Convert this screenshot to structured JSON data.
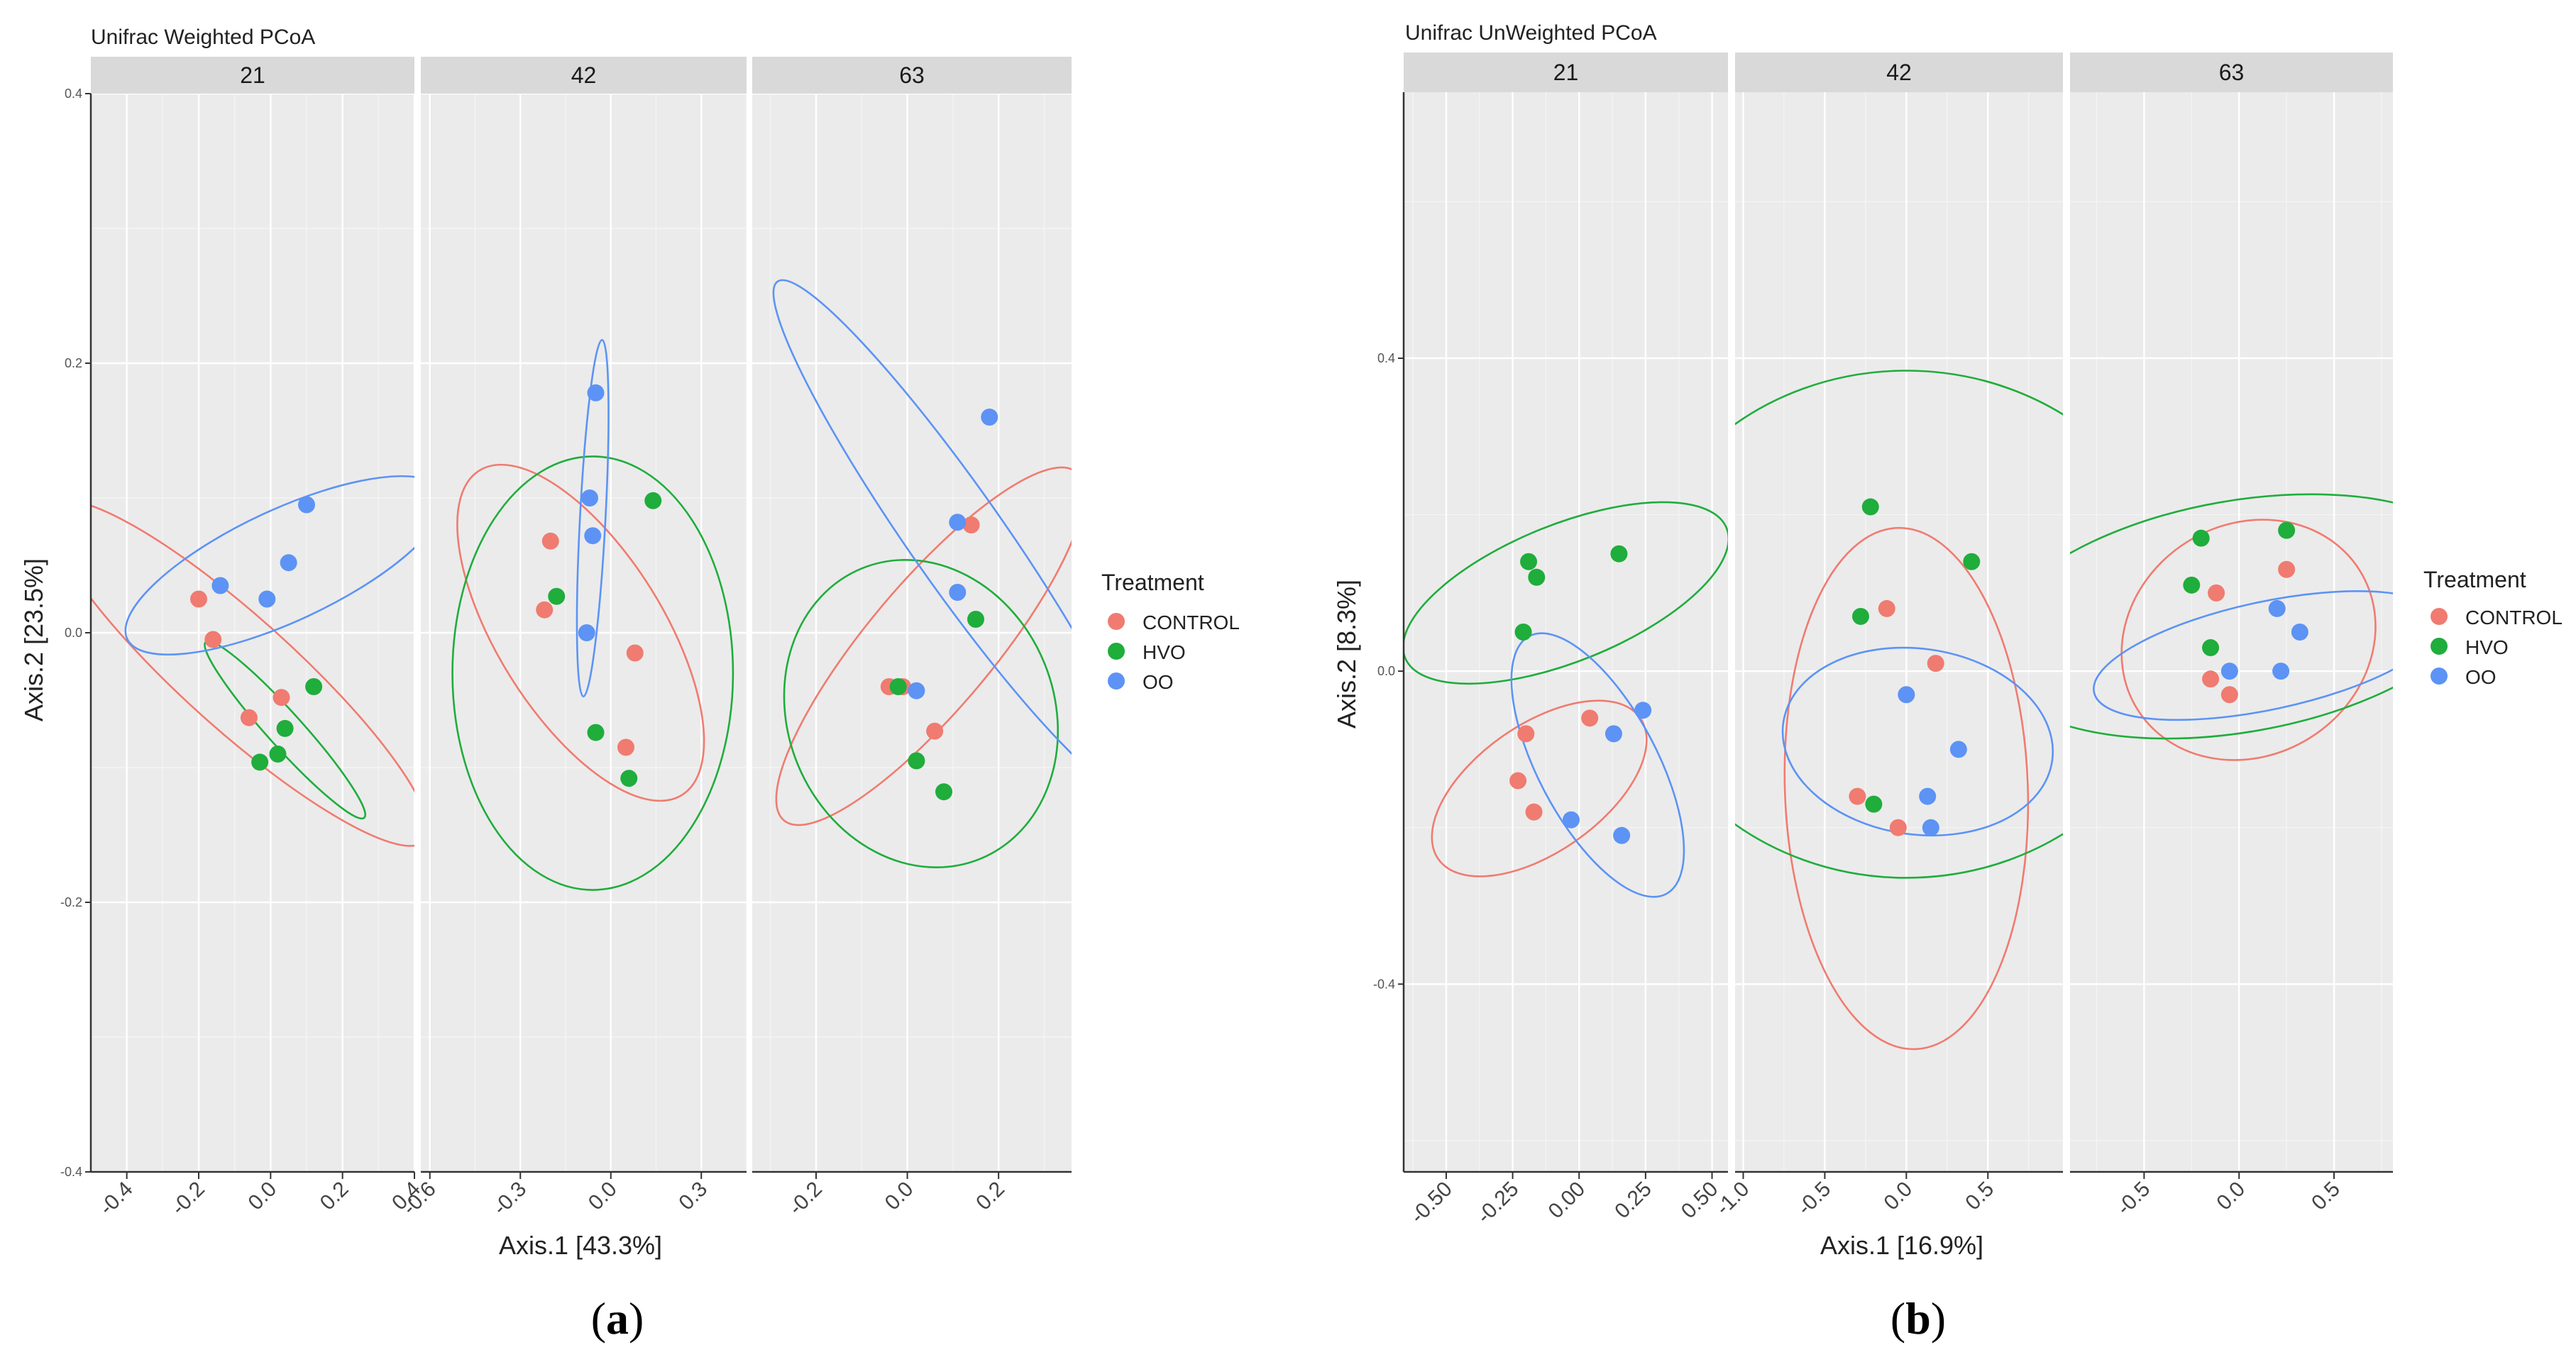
{
  "colors": {
    "CONTROL": "#f07b70",
    "HVO": "#1fad3c",
    "OO": "#5c93f5"
  },
  "chart_data": [
    {
      "type": "scatter",
      "letter": "a",
      "title": "Unifrac Weighted PCoA",
      "xlabel": "Axis.1   [43.3%]",
      "ylabel": "Axis.2   [23.5%]",
      "ylim": [
        -0.4,
        0.4
      ],
      "yticks": [
        -0.4,
        -0.2,
        0.0,
        0.2,
        0.4
      ],
      "ytick_labels": [
        "-0.4",
        "-0.2",
        "0.0",
        "0.2",
        "0.4"
      ],
      "legend": {
        "title": "Treatment",
        "entries": [
          "CONTROL",
          "HVO",
          "OO"
        ],
        "placement": "right"
      },
      "facets": [
        {
          "label": "21",
          "xlim": [
            -0.5,
            0.4
          ],
          "xticks": [
            -0.4,
            -0.2,
            0.0,
            0.2,
            0.4
          ],
          "xtick_labels": [
            "-0.4",
            "-0.2",
            "0.0",
            "0.2",
            "0.4"
          ],
          "series": [
            {
              "name": "CONTROL",
              "points": [
                [
                  -0.2,
                  0.025
                ],
                [
                  -0.16,
                  -0.005
                ],
                [
                  -0.06,
                  -0.063
                ],
                [
                  0.03,
                  -0.048
                ]
              ],
              "ellipse": {
                "cx": -0.09,
                "cy": -0.03,
                "rx": 0.36,
                "ry": 0.08,
                "angle_deg": -42
              }
            },
            {
              "name": "HVO",
              "points": [
                [
                  -0.03,
                  -0.096
                ],
                [
                  0.02,
                  -0.09
                ],
                [
                  0.04,
                  -0.071
                ],
                [
                  0.12,
                  -0.04
                ]
              ],
              "ellipse": {
                "cx": 0.04,
                "cy": -0.072,
                "rx": 0.17,
                "ry": 0.025,
                "angle_deg": -48
              }
            },
            {
              "name": "OO",
              "points": [
                [
                  -0.14,
                  0.035
                ],
                [
                  -0.01,
                  0.025
                ],
                [
                  0.05,
                  0.052
                ],
                [
                  0.1,
                  0.095
                ]
              ],
              "ellipse": {
                "cx": 0.04,
                "cy": 0.05,
                "rx": 0.25,
                "ry": 0.08,
                "angle_deg": 25
              }
            }
          ]
        },
        {
          "label": "42",
          "xlim": [
            -0.63,
            0.45
          ],
          "xticks": [
            -0.6,
            -0.3,
            0.0,
            0.3
          ],
          "xtick_labels": [
            "-0.6",
            "-0.3",
            "0.0",
            "0.3"
          ],
          "series": [
            {
              "name": "CONTROL",
              "points": [
                [
                  -0.22,
                  0.017
                ],
                [
                  -0.2,
                  0.068
                ],
                [
                  0.05,
                  -0.085
                ],
                [
                  0.08,
                  -0.015
                ]
              ],
              "ellipse": {
                "cx": -0.1,
                "cy": 0.0,
                "rx": 0.3,
                "ry": 0.13,
                "angle_deg": -58
              }
            },
            {
              "name": "HVO",
              "points": [
                [
                  -0.18,
                  0.027
                ],
                [
                  -0.05,
                  -0.074
                ],
                [
                  0.06,
                  -0.108
                ],
                [
                  0.14,
                  0.098
                ]
              ],
              "ellipse": {
                "cx": -0.06,
                "cy": -0.03,
                "rx": 0.22,
                "ry": 0.34,
                "angle_deg": 0
              }
            },
            {
              "name": "OO",
              "points": [
                [
                  -0.07,
                  0.1
                ],
                [
                  -0.06,
                  0.072
                ],
                [
                  -0.05,
                  0.178
                ],
                [
                  -0.08,
                  0.0
                ]
              ],
              "ellipse": {
                "cx": -0.06,
                "cy": 0.085,
                "rx": 0.02,
                "ry": 0.28,
                "angle_deg": -3
              }
            }
          ]
        },
        {
          "label": "63",
          "xlim": [
            -0.34,
            0.36
          ],
          "xticks": [
            -0.2,
            0.0,
            0.2
          ],
          "xtick_labels": [
            "-0.2",
            "0.0",
            "0.2"
          ],
          "series": [
            {
              "name": "CONTROL",
              "points": [
                [
                  -0.04,
                  -0.04
                ],
                [
                  -0.01,
                  -0.04
                ],
                [
                  0.06,
                  -0.073
                ],
                [
                  0.14,
                  0.08
                ]
              ],
              "ellipse": {
                "cx": 0.05,
                "cy": -0.01,
                "rx": 0.29,
                "ry": 0.08,
                "angle_deg": 50
              }
            },
            {
              "name": "HVO",
              "points": [
                [
                  -0.02,
                  -0.04
                ],
                [
                  0.02,
                  -0.095
                ],
                [
                  0.08,
                  -0.118
                ],
                [
                  0.15,
                  0.01
                ]
              ],
              "ellipse": {
                "cx": 0.03,
                "cy": -0.06,
                "rx": 0.17,
                "ry": 0.2,
                "angle_deg": 22
              }
            },
            {
              "name": "OO",
              "points": [
                [
                  0.02,
                  -0.043
                ],
                [
                  0.11,
                  0.082
                ],
                [
                  0.11,
                  0.03
                ],
                [
                  0.18,
                  0.16
                ]
              ],
              "ellipse": {
                "cx": 0.11,
                "cy": 0.07,
                "rx": 0.06,
                "ry": 0.4,
                "angle_deg": 35
              }
            }
          ]
        }
      ]
    },
    {
      "type": "scatter",
      "letter": "b",
      "title": "Unifrac UnWeighted PCoA",
      "xlabel": "Axis.1   [16.9%]",
      "ylabel": "Axis.2   [8.3%]",
      "ylim": [
        -0.64,
        0.74
      ],
      "yticks": [
        -0.4,
        0.0,
        0.4
      ],
      "ytick_labels": [
        "-0.4",
        "0.0",
        "0.4"
      ],
      "legend": {
        "title": "Treatment",
        "entries": [
          "CONTROL",
          "HVO",
          "OO"
        ],
        "placement": "right"
      },
      "facets": [
        {
          "label": "21",
          "xlim": [
            -0.66,
            0.56
          ],
          "xticks": [
            -0.5,
            -0.25,
            0.0,
            0.25,
            0.5
          ],
          "xtick_labels": [
            "-0.50",
            "-0.25",
            "0.00",
            "0.25",
            "0.50"
          ],
          "series": [
            {
              "name": "CONTROL",
              "points": [
                [
                  -0.2,
                  -0.08
                ],
                [
                  -0.23,
                  -0.14
                ],
                [
                  -0.17,
                  -0.18
                ],
                [
                  0.04,
                  -0.06
                ]
              ],
              "ellipse": {
                "cx": -0.15,
                "cy": -0.15,
                "rx": 0.27,
                "ry": 0.14,
                "angle_deg": 35
              }
            },
            {
              "name": "HVO",
              "points": [
                [
                  -0.21,
                  0.05
                ],
                [
                  -0.19,
                  0.14
                ],
                [
                  -0.16,
                  0.12
                ],
                [
                  0.15,
                  0.15
                ]
              ],
              "ellipse": {
                "cx": -0.05,
                "cy": 0.1,
                "rx": 0.38,
                "ry": 0.15,
                "angle_deg": 22
              }
            },
            {
              "name": "OO",
              "points": [
                [
                  -0.03,
                  -0.19
                ],
                [
                  0.13,
                  -0.08
                ],
                [
                  0.16,
                  -0.21
                ],
                [
                  0.24,
                  -0.05
                ]
              ],
              "ellipse": {
                "cx": 0.07,
                "cy": -0.12,
                "rx": 0.32,
                "ry": 0.13,
                "angle_deg": -62
              }
            }
          ]
        },
        {
          "label": "42",
          "xlim": [
            -1.05,
            0.96
          ],
          "xticks": [
            -1.0,
            -0.5,
            0.0,
            0.5
          ],
          "xtick_labels": [
            "-1.0",
            "-0.5",
            "0.0",
            "0.5"
          ],
          "series": [
            {
              "name": "CONTROL",
              "points": [
                [
                  -0.3,
                  -0.16
                ],
                [
                  -0.12,
                  0.08
                ],
                [
                  -0.05,
                  -0.2
                ],
                [
                  0.18,
                  0.01
                ]
              ],
              "ellipse": {
                "cx": 0.0,
                "cy": -0.15,
                "rx": 0.34,
                "ry": 0.73,
                "angle_deg": 2
              }
            },
            {
              "name": "HVO",
              "points": [
                [
                  -0.28,
                  0.07
                ],
                [
                  -0.22,
                  0.21
                ],
                [
                  -0.2,
                  -0.17
                ],
                [
                  0.4,
                  0.14
                ]
              ],
              "ellipse": {
                "cx": 0.0,
                "cy": 0.06,
                "rx": 0.78,
                "ry": 0.71,
                "angle_deg": 0
              }
            },
            {
              "name": "OO",
              "points": [
                [
                  0.0,
                  -0.03
                ],
                [
                  0.13,
                  -0.16
                ],
                [
                  0.15,
                  -0.2
                ],
                [
                  0.32,
                  -0.1
                ]
              ],
              "ellipse": {
                "cx": 0.07,
                "cy": -0.09,
                "rx": 0.38,
                "ry": 0.26,
                "angle_deg": -8
              }
            }
          ]
        },
        {
          "label": "63",
          "xlim": [
            -0.89,
            0.81
          ],
          "xticks": [
            -0.5,
            0.0,
            0.5
          ],
          "xtick_labels": [
            "-0.5",
            "0.0",
            "0.5"
          ],
          "series": [
            {
              "name": "CONTROL",
              "points": [
                [
                  -0.12,
                  0.1
                ],
                [
                  -0.15,
                  -0.01
                ],
                [
                  -0.05,
                  -0.03
                ],
                [
                  0.25,
                  0.13
                ]
              ],
              "ellipse": {
                "cx": 0.05,
                "cy": 0.04,
                "rx": 0.34,
                "ry": 0.3,
                "angle_deg": 32
              }
            },
            {
              "name": "HVO",
              "points": [
                [
                  -0.25,
                  0.11
                ],
                [
                  -0.2,
                  0.17
                ],
                [
                  -0.15,
                  0.03
                ],
                [
                  0.25,
                  0.18
                ]
              ],
              "ellipse": {
                "cx": 0.0,
                "cy": 0.07,
                "rx": 0.66,
                "ry": 0.3,
                "angle_deg": 10
              }
            },
            {
              "name": "OO",
              "points": [
                [
                  -0.05,
                  0.0
                ],
                [
                  0.2,
                  0.08
                ],
                [
                  0.22,
                  0.0
                ],
                [
                  0.32,
                  0.05
                ]
              ],
              "ellipse": {
                "cx": 0.15,
                "cy": 0.02,
                "rx": 0.46,
                "ry": 0.14,
                "angle_deg": 12
              }
            }
          ]
        }
      ]
    }
  ]
}
